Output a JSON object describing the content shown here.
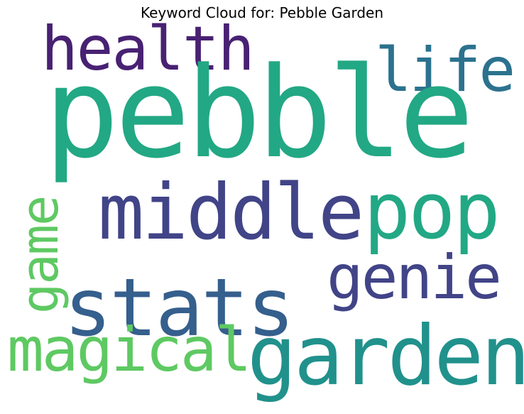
{
  "title": "Keyword Cloud for: Pebble Garden",
  "words": {
    "pebble": {
      "text": "pebble",
      "color": "#22a884"
    },
    "health": {
      "text": "health",
      "color": "#482173"
    },
    "life": {
      "text": "life",
      "color": "#2c728e"
    },
    "middle": {
      "text": "middle",
      "color": "#414487"
    },
    "pop": {
      "text": "pop",
      "color": "#22a884"
    },
    "genie": {
      "text": "genie",
      "color": "#414487"
    },
    "stats": {
      "text": "stats",
      "color": "#355f8d"
    },
    "magical": {
      "text": "magical",
      "color": "#5ec962"
    },
    "garden": {
      "text": "garden",
      "color": "#21918c"
    },
    "game": {
      "text": "game",
      "color": "#5ec962"
    }
  }
}
